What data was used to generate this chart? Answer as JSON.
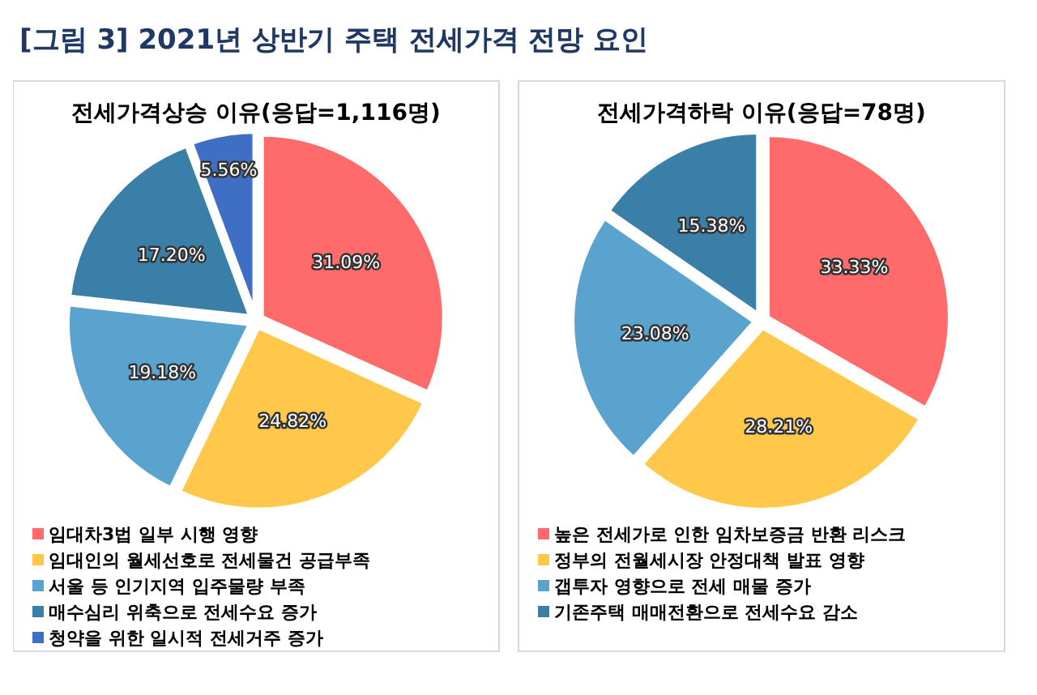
{
  "chart_data": [
    {
      "type": "pie",
      "title": "전세가격상승 이유(응답=1,116명)",
      "annotations": [
        "[그림 3] 2021년 상반기 주택 전세가격 전망 요인"
      ],
      "categories": [
        "임대차3법 일부 시행 영향",
        "임대인의 월세선호로 전세물건 공급부족",
        "서울 등 인기지역 입주물량 부족",
        "매수심리 위축으로 전세수요 증가",
        "청약을 위한 일시적 전세거주 증가"
      ],
      "values": [
        31.09,
        24.82,
        19.18,
        17.2,
        5.56
      ],
      "value_labels": [
        "31.09%",
        "24.82%",
        "19.18%",
        "17.20%",
        "5.56%"
      ],
      "colors": [
        "#ff6b6b",
        "#ffc84a",
        "#5ba3cf",
        "#3a7fa8",
        "#3f6fc5"
      ],
      "legend": "bottom"
    },
    {
      "type": "pie",
      "title": "전세가격하락 이유(응답=78명)",
      "categories": [
        "높은 전세가로 인한 임차보증금 반환 리스크",
        "정부의 전월세시장 안정대책 발표 영향",
        "갭투자 영향으로 전세 매물 증가",
        "기존주택 매매전환으로 전세수요 감소"
      ],
      "values": [
        33.33,
        28.21,
        23.08,
        15.38
      ],
      "value_labels": [
        "33.33%",
        "28.21%",
        "23.08%",
        "15.38%"
      ],
      "colors": [
        "#ff6b6b",
        "#ffc84a",
        "#5ba3cf",
        "#3a7fa8"
      ],
      "legend": "bottom"
    }
  ]
}
